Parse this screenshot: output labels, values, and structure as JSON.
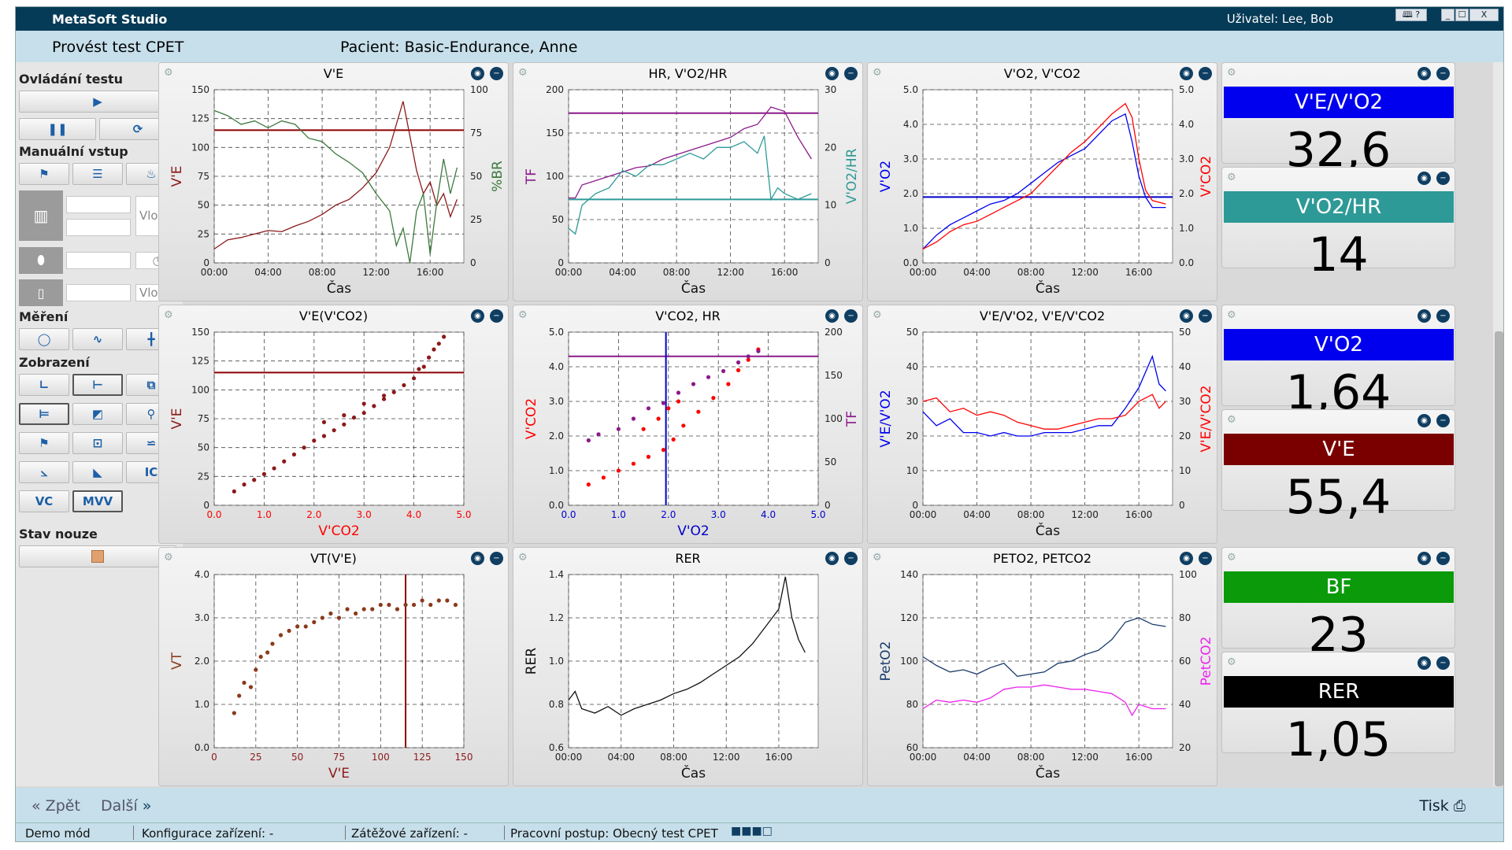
{
  "window": {
    "app_name": "MetaSoft Studio",
    "user": "Uživatel: Lee, Bob",
    "btn_help": "🕮 ?",
    "btn_min": "_",
    "btn_max": "☐",
    "btn_close": "X"
  },
  "header": {
    "test": "Provést test CPET",
    "patient": "Pacient:  Basic-Endurance, Anne"
  },
  "sidebar": {
    "ovladani": "Ovládání testu",
    "manual": "Manuální vstup",
    "mereni": "Měření",
    "zobrazeni": "Zobrazení",
    "nouze": "Stav nouze",
    "vlo1": "Vlo...",
    "vlo2": "Vlo...",
    "vc": "VC",
    "mvv": "MVV",
    "ic": "IC"
  },
  "panels": {
    "p1": "V'E",
    "p2": "HR, V'O2/HR",
    "p3": "V'O2, V'CO2",
    "p4": "V'E(V'CO2)",
    "p5": "V'CO2, HR",
    "p6": "V'E/V'O2, V'E/V'CO2",
    "p7": "VT(V'E)",
    "p8": "RER",
    "p9": "PETO2, PETCO2"
  },
  "values": [
    {
      "label": "V'E/V'O2",
      "value": "32,6",
      "color": "#0000ee"
    },
    {
      "label": "V'O2/HR",
      "value": "14",
      "color": "#2e9a97"
    },
    {
      "label": "V'O2",
      "value": "1,64",
      "color": "#0000ee"
    },
    {
      "label": "V'E",
      "value": "55,4",
      "color": "#7a0000"
    },
    {
      "label": "BF",
      "value": "23",
      "color": "#0a9a0a"
    },
    {
      "label": "RER",
      "value": "1,05",
      "color": "#000000"
    }
  ],
  "chart_data": [
    {
      "id": "p1",
      "type": "line",
      "title": "V'E",
      "xlabel": "Čas",
      "ylabel": "V'E",
      "y2label": "%BR",
      "xticks": [
        "00:00",
        "04:00",
        "08:00",
        "12:00",
        "16:00"
      ],
      "xlim": [
        0,
        18.5
      ],
      "ylim": [
        0,
        150
      ],
      "y2lim": [
        0,
        100
      ],
      "yticks": [
        "0",
        "25",
        "50",
        "75",
        "100",
        "125",
        "150"
      ],
      "y2ticks": [
        "0",
        "25",
        "50",
        "75",
        "100"
      ],
      "hline": {
        "value": 115,
        "color": "#8b0000"
      },
      "series": [
        {
          "color": "#8b1a1a",
          "axis": "y",
          "x": [
            0,
            1,
            2,
            3,
            4,
            5,
            6,
            7,
            8,
            9,
            10,
            11,
            12,
            13,
            13.5,
            14,
            14.5,
            15,
            15.5,
            16,
            16.5,
            17,
            17.5,
            18
          ],
          "y": [
            12,
            20,
            22,
            25,
            28,
            27,
            32,
            36,
            42,
            50,
            55,
            65,
            78,
            100,
            120,
            140,
            110,
            80,
            60,
            70,
            50,
            60,
            40,
            55
          ]
        },
        {
          "color": "#3d7a3d",
          "axis": "y2",
          "x": [
            0,
            1,
            2,
            3,
            4,
            5,
            6,
            7,
            8,
            9,
            10,
            11,
            12,
            13,
            13.5,
            14,
            14.5,
            15,
            15.5,
            16,
            16.5,
            17,
            17.5,
            18
          ],
          "y": [
            88,
            85,
            80,
            82,
            78,
            82,
            80,
            72,
            70,
            63,
            58,
            52,
            40,
            30,
            10,
            20,
            0,
            30,
            40,
            5,
            35,
            60,
            40,
            55
          ]
        }
      ]
    },
    {
      "id": "p2",
      "type": "line",
      "title": "HR, V'O2/HR",
      "xlabel": "Čas",
      "ylabel": "TF",
      "y2label": "V'O2/HR",
      "xticks": [
        "00:00",
        "04:00",
        "08:00",
        "12:00",
        "16:00"
      ],
      "xlim": [
        0,
        18.5
      ],
      "ylim": [
        0,
        200
      ],
      "y2lim": [
        0,
        30
      ],
      "yticks": [
        "0",
        "50",
        "100",
        "150",
        "200"
      ],
      "y2ticks": [
        "0",
        "10",
        "20",
        "30"
      ],
      "hline": {
        "value": 173,
        "color": "#8b1a8b"
      },
      "hline2": {
        "value": 11,
        "color": "#2e9a97"
      },
      "series": [
        {
          "color": "#8b1a8b",
          "axis": "y",
          "x": [
            0,
            0.5,
            1,
            2,
            3,
            4,
            5,
            6,
            7,
            8,
            9,
            10,
            11,
            12,
            13,
            14,
            15,
            16,
            17,
            18
          ],
          "y": [
            75,
            75,
            90,
            95,
            100,
            105,
            110,
            112,
            120,
            125,
            130,
            135,
            140,
            145,
            155,
            160,
            180,
            175,
            145,
            120
          ]
        },
        {
          "color": "#2e9a97",
          "axis": "y2",
          "x": [
            0,
            0.5,
            1,
            2,
            3,
            4,
            5,
            6,
            7,
            8,
            9,
            10,
            11,
            12,
            13,
            14,
            14.5,
            15,
            15.5,
            16,
            17,
            18
          ],
          "y": [
            6,
            5,
            10,
            12,
            13,
            16,
            15,
            17,
            17,
            18,
            19,
            18,
            20,
            20,
            21,
            19,
            22,
            11,
            13,
            12,
            11,
            12
          ]
        }
      ]
    },
    {
      "id": "p3",
      "type": "line",
      "title": "V'O2, V'CO2",
      "xlabel": "Čas",
      "ylabel": "V'O2",
      "y2label": "V'CO2",
      "xticks": [
        "00:00",
        "04:00",
        "08:00",
        "12:00",
        "16:00"
      ],
      "xlim": [
        0,
        18.5
      ],
      "ylim": [
        0,
        5
      ],
      "y2lim": [
        0,
        5
      ],
      "yticks": [
        "0.0",
        "1.0",
        "2.0",
        "3.0",
        "4.0",
        "5.0"
      ],
      "y2ticks": [
        "0.0",
        "1.0",
        "2.0",
        "3.0",
        "4.0",
        "5.0"
      ],
      "hline": {
        "value": 1.9,
        "color": "#0000cc"
      },
      "series": [
        {
          "color": "#0000ee",
          "axis": "y",
          "x": [
            0,
            1,
            2,
            3,
            4,
            5,
            6,
            7,
            8,
            9,
            10,
            11,
            12,
            13,
            14,
            15,
            15.5,
            16,
            16.5,
            17,
            18
          ],
          "y": [
            0.4,
            0.8,
            1.1,
            1.3,
            1.5,
            1.7,
            1.8,
            2.0,
            2.3,
            2.6,
            2.9,
            3.1,
            3.3,
            3.7,
            4.1,
            4.3,
            3.5,
            2.5,
            1.9,
            1.6,
            1.6
          ]
        },
        {
          "color": "#ff0000",
          "axis": "y2",
          "x": [
            0,
            1,
            2,
            3,
            4,
            5,
            6,
            7,
            8,
            9,
            10,
            11,
            12,
            13,
            14,
            15,
            15.5,
            16,
            16.5,
            17,
            18
          ],
          "y": [
            0.4,
            0.6,
            0.9,
            1.1,
            1.2,
            1.4,
            1.6,
            1.8,
            2.0,
            2.4,
            2.8,
            3.2,
            3.5,
            3.9,
            4.3,
            4.6,
            4.2,
            3.0,
            2.1,
            1.8,
            1.7
          ]
        }
      ]
    },
    {
      "id": "p4",
      "type": "scatter",
      "title": "V'E(V'CO2)",
      "xlabel": "V'CO2",
      "ylabel": "V'E",
      "xticks": [
        "0.0",
        "1.0",
        "2.0",
        "3.0",
        "4.0",
        "5.0"
      ],
      "xlim": [
        0,
        5
      ],
      "ylim": [
        0,
        150
      ],
      "yticks": [
        "0",
        "25",
        "50",
        "75",
        "100",
        "125",
        "150"
      ],
      "hline": {
        "value": 115,
        "color": "#8b0000"
      },
      "series": [
        {
          "color": "#8b1a1a",
          "x": [
            0.4,
            0.6,
            0.8,
            1.0,
            1.2,
            1.4,
            1.6,
            1.8,
            2.0,
            2.2,
            2.4,
            2.6,
            2.8,
            3.0,
            3.2,
            3.4,
            3.6,
            3.8,
            4.0,
            4.1,
            4.2,
            4.3,
            4.4,
            4.5,
            4.6,
            2.2,
            2.6,
            3.0,
            3.4
          ],
          "y": [
            12,
            18,
            22,
            27,
            32,
            38,
            44,
            50,
            56,
            60,
            65,
            70,
            76,
            80,
            86,
            92,
            98,
            104,
            110,
            118,
            120,
            128,
            135,
            140,
            146,
            72,
            78,
            88,
            95
          ]
        }
      ]
    },
    {
      "id": "p5",
      "type": "scatter",
      "title": "V'CO2, HR",
      "xlabel": "V'O2",
      "ylabel": "V'CO2",
      "y2label": "TF",
      "xticks": [
        "0.0",
        "1.0",
        "2.0",
        "3.0",
        "4.0",
        "5.0"
      ],
      "xlim": [
        0,
        5
      ],
      "ylim": [
        0,
        5
      ],
      "y2lim": [
        0,
        200
      ],
      "yticks": [
        "0.0",
        "1.0",
        "2.0",
        "3.0",
        "4.0",
        "5.0"
      ],
      "y2ticks": [
        "0",
        "50",
        "100",
        "150",
        "200"
      ],
      "hline": {
        "value": 4.3,
        "color": "#8b1a8b"
      },
      "vline": {
        "value": 1.95,
        "color": "#0000cc"
      },
      "series": [
        {
          "color": "#ff0000",
          "axis": "y",
          "x": [
            0.4,
            0.7,
            1.0,
            1.3,
            1.6,
            1.9,
            2.1,
            2.3,
            2.6,
            2.9,
            3.2,
            3.4,
            3.6,
            3.8,
            1.5,
            1.8,
            2.0,
            2.2
          ],
          "y": [
            0.6,
            0.8,
            1.0,
            1.2,
            1.4,
            1.6,
            1.9,
            2.3,
            2.7,
            3.1,
            3.5,
            3.9,
            4.2,
            4.5,
            2.2,
            2.5,
            2.8,
            3.0
          ]
        },
        {
          "color": "#8b1a8b",
          "axis": "y2",
          "x": [
            0.4,
            0.6,
            1.0,
            1.3,
            1.6,
            1.9,
            2.2,
            2.5,
            2.8,
            3.1,
            3.4,
            3.6,
            3.8
          ],
          "y": [
            75,
            82,
            88,
            100,
            112,
            118,
            130,
            140,
            148,
            155,
            165,
            172,
            178
          ]
        }
      ]
    },
    {
      "id": "p6",
      "type": "line",
      "title": "V'E/V'O2, V'E/V'CO2",
      "xlabel": "Čas",
      "ylabel": "V'E/V'O2",
      "y2label": "V'E/V'CO2",
      "xticks": [
        "00:00",
        "04:00",
        "08:00",
        "12:00",
        "16:00"
      ],
      "xlim": [
        0,
        18.5
      ],
      "ylim": [
        0,
        50
      ],
      "y2lim": [
        0,
        50
      ],
      "yticks": [
        "0",
        "10",
        "20",
        "30",
        "40",
        "50"
      ],
      "y2ticks": [
        "0",
        "10",
        "20",
        "30",
        "40",
        "50"
      ],
      "series": [
        {
          "color": "#0000ee",
          "axis": "y",
          "x": [
            0,
            1,
            2,
            3,
            4,
            5,
            6,
            7,
            8,
            9,
            10,
            11,
            12,
            13,
            14,
            15,
            16,
            17,
            17.5,
            18
          ],
          "y": [
            27,
            23,
            25,
            21,
            21,
            20,
            21,
            20,
            20,
            21,
            21,
            21,
            22,
            23,
            23,
            28,
            34,
            43,
            35,
            33
          ]
        },
        {
          "color": "#ff0000",
          "axis": "y2",
          "x": [
            0,
            1,
            2,
            3,
            4,
            5,
            6,
            7,
            8,
            9,
            10,
            11,
            12,
            13,
            14,
            15,
            16,
            17,
            17.5,
            18
          ],
          "y": [
            30,
            31,
            27,
            28,
            26,
            27,
            26,
            24,
            23,
            22,
            22,
            23,
            24,
            25,
            25,
            26,
            30,
            32,
            28,
            30
          ]
        }
      ]
    },
    {
      "id": "p7",
      "type": "scatter",
      "title": "VT(V'E)",
      "xlabel": "V'E",
      "ylabel": "VT",
      "xticks": [
        "0",
        "25",
        "50",
        "75",
        "100",
        "125",
        "150"
      ],
      "xlim": [
        0,
        150
      ],
      "ylim": [
        0,
        4
      ],
      "yticks": [
        "0.0",
        "1.0",
        "2.0",
        "3.0",
        "4.0"
      ],
      "vline": {
        "value": 115,
        "color": "#8b0000"
      },
      "series": [
        {
          "color": "#8b3a1a",
          "x": [
            12,
            15,
            18,
            22,
            25,
            28,
            32,
            35,
            40,
            45,
            50,
            55,
            60,
            65,
            70,
            75,
            80,
            85,
            90,
            95,
            100,
            105,
            110,
            115,
            120,
            125,
            130,
            135,
            140,
            145
          ],
          "y": [
            0.8,
            1.2,
            1.5,
            1.4,
            1.8,
            2.1,
            2.2,
            2.4,
            2.6,
            2.7,
            2.8,
            2.8,
            2.9,
            3.0,
            3.1,
            3.0,
            3.2,
            3.1,
            3.2,
            3.2,
            3.3,
            3.3,
            3.2,
            3.3,
            3.3,
            3.4,
            3.3,
            3.4,
            3.4,
            3.3
          ]
        }
      ]
    },
    {
      "id": "p8",
      "type": "line",
      "title": "RER",
      "xlabel": "Čas",
      "ylabel": "RER",
      "xticks": [
        "00:00",
        "04:00",
        "08:00",
        "12:00",
        "16:00"
      ],
      "xlim": [
        0,
        19
      ],
      "ylim": [
        0.6,
        1.4
      ],
      "yticks": [
        "0.6",
        "0.8",
        "1.0",
        "1.2",
        "1.4"
      ],
      "series": [
        {
          "color": "#111111",
          "axis": "y",
          "x": [
            0,
            0.5,
            1,
            2,
            3,
            4,
            5,
            6,
            7,
            8,
            9,
            10,
            11,
            12,
            13,
            14,
            15,
            16,
            16.5,
            17,
            17.5,
            18
          ],
          "y": [
            0.82,
            0.86,
            0.78,
            0.76,
            0.79,
            0.75,
            0.78,
            0.8,
            0.82,
            0.85,
            0.87,
            0.9,
            0.94,
            0.98,
            1.02,
            1.08,
            1.16,
            1.24,
            1.39,
            1.2,
            1.1,
            1.04
          ]
        }
      ]
    },
    {
      "id": "p9",
      "type": "line",
      "title": "PETO2, PETCO2",
      "xlabel": "Čas",
      "ylabel": "PetO2",
      "y2label": "PetCO2",
      "xticks": [
        "00:00",
        "04:00",
        "08:00",
        "12:00",
        "16:00"
      ],
      "xlim": [
        0,
        18.5
      ],
      "ylim": [
        60,
        140
      ],
      "y2lim": [
        20,
        100
      ],
      "yticks": [
        "60",
        "80",
        "100",
        "120",
        "140"
      ],
      "y2ticks": [
        "20",
        "40",
        "60",
        "80",
        "100"
      ],
      "series": [
        {
          "color": "#1a3d6b",
          "axis": "y",
          "x": [
            0,
            1,
            2,
            3,
            4,
            5,
            6,
            7,
            8,
            9,
            10,
            11,
            12,
            13,
            14,
            15,
            16,
            17,
            18
          ],
          "y": [
            102,
            98,
            95,
            96,
            94,
            97,
            99,
            93,
            94,
            95,
            99,
            100,
            103,
            105,
            110,
            118,
            120,
            117,
            116
          ]
        },
        {
          "color": "#ee22ee",
          "axis": "y2",
          "x": [
            0,
            1,
            2,
            3,
            4,
            5,
            6,
            7,
            8,
            9,
            10,
            11,
            12,
            13,
            14,
            15,
            15.5,
            16,
            17,
            18
          ],
          "y": [
            38,
            42,
            41,
            42,
            41,
            43,
            47,
            48,
            48,
            49,
            48,
            47,
            47,
            46,
            45,
            41,
            35,
            40,
            38,
            38
          ]
        }
      ]
    }
  ],
  "navbar": {
    "back": "Zpět",
    "next": "Další",
    "print": "Tisk"
  },
  "status": {
    "mode": "Demo mód",
    "device": "Konfigurace zařízení: -",
    "load": "Zátěžové zařízení: -",
    "procedure": "Pracovní postup: Obecný test CPET"
  }
}
